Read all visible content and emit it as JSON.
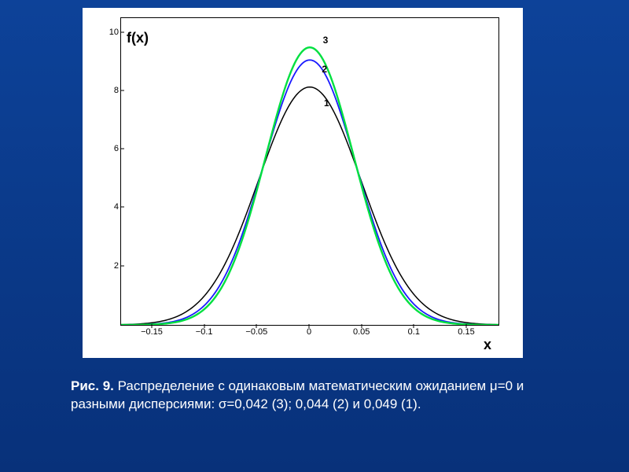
{
  "chart": {
    "type": "line",
    "background_color": "#ffffff",
    "page_background": "#0a3a8a",
    "y_label": "f(x)",
    "x_label": "x",
    "label_fontsize": 18,
    "tick_fontsize": 11,
    "xlim": [
      -0.18,
      0.18
    ],
    "ylim": [
      0,
      10.5
    ],
    "x_ticks": [
      -0.15,
      -0.1,
      -0.05,
      0,
      0.05,
      0.1,
      0.15
    ],
    "x_tick_labels": [
      "−0.15",
      "−0.1",
      "−0.05",
      "0",
      "0.05",
      "0.1",
      "0.15"
    ],
    "y_ticks": [
      2,
      4,
      6,
      8,
      10
    ],
    "y_tick_labels": [
      "2",
      "4",
      "6",
      "8",
      "10"
    ],
    "series": [
      {
        "id": "1",
        "label": "1",
        "sigma": 0.049,
        "peak": 8.14,
        "color": "#000000",
        "line_width": 1.5
      },
      {
        "id": "2",
        "label": "2",
        "sigma": 0.044,
        "peak": 9.07,
        "color": "#1a1aff",
        "line_width": 1.8
      },
      {
        "id": "3",
        "label": "3",
        "sigma": 0.042,
        "peak": 9.5,
        "color": "#00e040",
        "line_width": 2.4
      }
    ],
    "series_label_positions": {
      "1": {
        "x": 0.016,
        "y": 7.6
      },
      "2": {
        "x": 0.014,
        "y": 8.75
      },
      "3": {
        "x": 0.015,
        "y": 9.75
      }
    },
    "mu": 0
  },
  "caption": {
    "prefix": "Рис. 9.",
    "text": " Распределение c одинаковым математическим ожиданием μ=0 и разными дисперсиями: σ=0,042 (3); 0,044 (2) и 0,049 (1).",
    "color": "#ffffff",
    "fontsize": 17
  }
}
